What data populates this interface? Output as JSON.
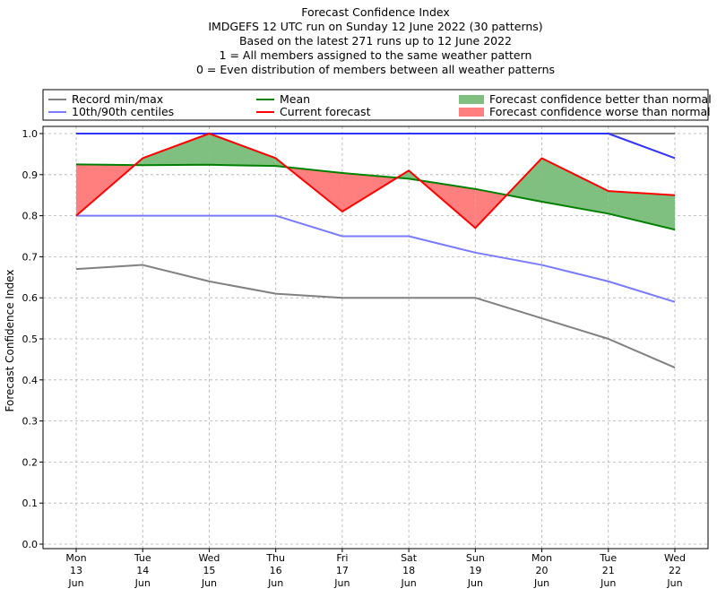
{
  "chart_data": {
    "type": "line",
    "title_lines": [
      "Forecast Confidence Index",
      "IMDGEFS 12 UTC run on Sunday 12 June 2022 (30 patterns)",
      "Based on the latest 271 runs up to 12 June 2022",
      "1 = All members assigned to the same weather pattern",
      "0 = Even distribution of members between all weather patterns"
    ],
    "ylabel": "Forecast Confidence Index",
    "xlabel": "",
    "ylim": [
      0,
      1.0
    ],
    "yticks": [
      "0.0",
      "0.1",
      "0.2",
      "0.3",
      "0.4",
      "0.5",
      "0.6",
      "0.7",
      "0.8",
      "0.9",
      "1.0"
    ],
    "grid": true,
    "legend_position": "top, above plot",
    "categories": [
      [
        "Mon",
        "13",
        "Jun"
      ],
      [
        "Tue",
        "14",
        "Jun"
      ],
      [
        "Wed",
        "15",
        "Jun"
      ],
      [
        "Thu",
        "16",
        "Jun"
      ],
      [
        "Fri",
        "17",
        "Jun"
      ],
      [
        "Sat",
        "18",
        "Jun"
      ],
      [
        "Sun",
        "19",
        "Jun"
      ],
      [
        "Mon",
        "20",
        "Jun"
      ],
      [
        "Tue",
        "21",
        "Jun"
      ],
      [
        "Wed",
        "22",
        "Jun"
      ]
    ],
    "series": [
      {
        "name": "Record min/max",
        "role": "record_min",
        "color": "#808080",
        "values": [
          0.67,
          0.68,
          0.64,
          0.61,
          0.6,
          0.6,
          0.6,
          0.55,
          0.5,
          0.43
        ]
      },
      {
        "role": "record_max",
        "color": "#808080",
        "values": [
          1.0,
          1.0,
          1.0,
          1.0,
          1.0,
          1.0,
          1.0,
          1.0,
          1.0,
          1.0
        ]
      },
      {
        "name": "10th/90th centiles",
        "role": "p10",
        "color": "#7a7aff",
        "values": [
          0.8,
          0.8,
          0.8,
          0.8,
          0.75,
          0.75,
          0.71,
          0.68,
          0.64,
          0.59
        ]
      },
      {
        "role": "p90",
        "color": "#3333ff",
        "values": [
          1.0,
          1.0,
          1.0,
          1.0,
          1.0,
          1.0,
          1.0,
          1.0,
          1.0,
          0.94
        ]
      },
      {
        "name": "Mean",
        "role": "mean",
        "color": "#008000",
        "values": [
          0.925,
          0.923,
          0.924,
          0.921,
          0.904,
          0.89,
          0.865,
          0.834,
          0.805,
          0.766
        ]
      },
      {
        "name": "Current forecast",
        "role": "current",
        "color": "#ff0000",
        "values": [
          0.8,
          0.94,
          1.0,
          0.94,
          0.81,
          0.91,
          0.77,
          0.94,
          0.86,
          0.85
        ]
      }
    ],
    "fills": [
      {
        "name": "Forecast confidence better than normal",
        "color": "#7fbf7f"
      },
      {
        "name": "Forecast confidence worse than normal",
        "color": "#ff7f7f"
      }
    ]
  }
}
